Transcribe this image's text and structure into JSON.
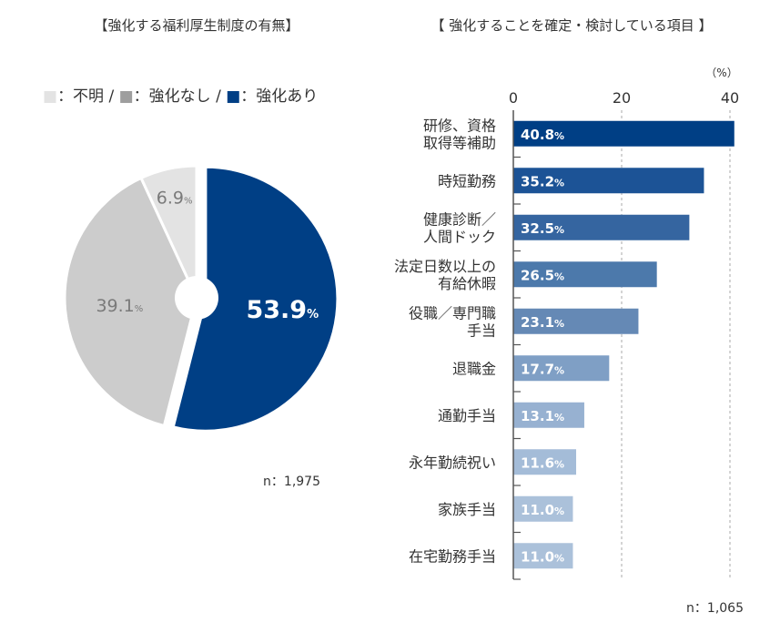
{
  "chart_data": [
    {
      "type": "pie",
      "title": "【強化する福利厚生制度の有無】",
      "legend": [
        {
          "marker": "■",
          "label": "：不明",
          "color": "#e3e3e3"
        },
        {
          "marker": "■",
          "label": "：強化なし",
          "color": "#9e9e9e"
        },
        {
          "marker": "■",
          "label": "：強化あり",
          "color": "#003f85"
        }
      ],
      "legend_separator": " / ",
      "slices": [
        {
          "name": "強化あり",
          "value": 53.9,
          "label": "53.9",
          "unit": "%",
          "color": "#003f85",
          "label_color": "#ffffff"
        },
        {
          "name": "強化なし",
          "value": 39.1,
          "label": "39.1",
          "unit": "%",
          "color": "#cccccc",
          "label_color": "#7a7a7a"
        },
        {
          "name": "不明",
          "value": 6.9,
          "label": "6.9",
          "unit": "%",
          "color": "#e3e3e3",
          "label_color": "#7a7a7a"
        }
      ],
      "n_note": "n：1,975"
    },
    {
      "type": "bar",
      "orientation": "horizontal",
      "title": "【 強化することを確定・検討している項目 】",
      "unit_label": "（%）",
      "xlim": [
        0,
        42
      ],
      "ticks": [
        0,
        20,
        40
      ],
      "grid": "dashed vertical",
      "categories": [
        [
          "研修、資格",
          "取得等補助"
        ],
        [
          "時短勤務"
        ],
        [
          "健康診断／",
          "人間ドック"
        ],
        [
          "法定日数以上の",
          "有給休暇"
        ],
        [
          "役職／専門職",
          "手当"
        ],
        [
          "退職金"
        ],
        [
          "通勤手当"
        ],
        [
          "永年勤続祝い"
        ],
        [
          "家族手当"
        ],
        [
          "在宅勤務手当"
        ]
      ],
      "values": [
        40.8,
        35.2,
        32.5,
        26.5,
        23.1,
        17.7,
        13.1,
        11.6,
        11.0,
        11.0
      ],
      "value_labels": [
        "40.8",
        "35.2",
        "32.5",
        "26.5",
        "23.1",
        "17.7",
        "13.1",
        "11.6",
        "11.0",
        "11.0"
      ],
      "value_unit": "%",
      "colors": [
        "#003f85",
        "#1c5396",
        "#3565a0",
        "#4c79ab",
        "#6589b5",
        "#7f9fc5",
        "#97b1d1",
        "#a4bcd8",
        "#abc1da",
        "#abc1da"
      ],
      "n_note": "n：1,065"
    }
  ]
}
